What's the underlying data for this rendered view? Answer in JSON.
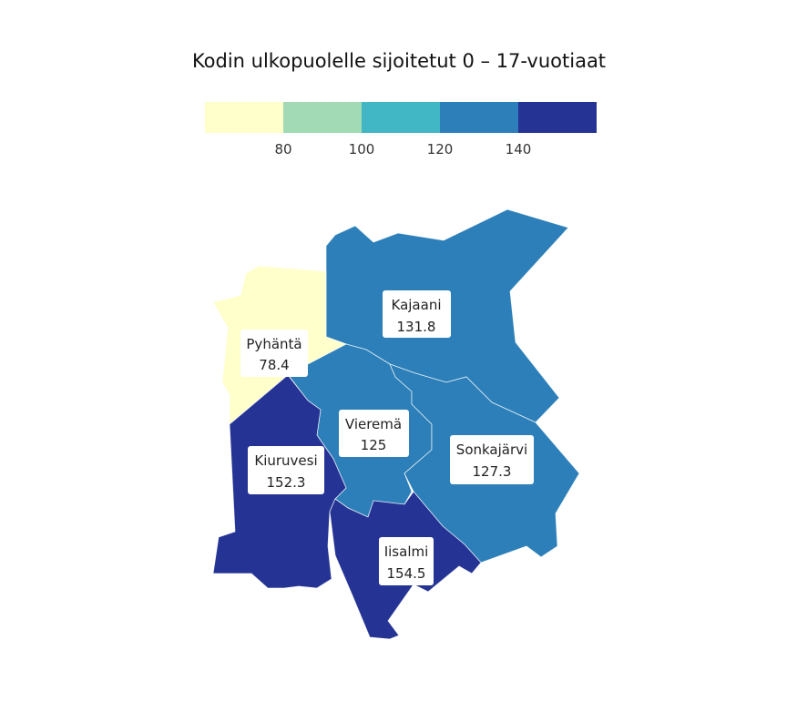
{
  "map": {
    "title": "Kodin ulkopuolelle sijoitetut 0 – 17-vuotiaat",
    "legend": {
      "colors": [
        "#ffffcc",
        "#a1dab4",
        "#41b6c4",
        "#2c7fb8",
        "#253494"
      ],
      "ticks": [
        "80",
        "100",
        "120",
        "140"
      ],
      "breaks": [
        80,
        100,
        120,
        140
      ]
    },
    "regions": [
      {
        "name": "Kajaani",
        "value": "131.8",
        "color": "#2c7fb8"
      },
      {
        "name": "Pyhäntä",
        "value": "78.4",
        "color": "#ffffcc"
      },
      {
        "name": "Vieremä",
        "value": "125",
        "color": "#2c7fb8"
      },
      {
        "name": "Sonkajärvi",
        "value": "127.3",
        "color": "#2c7fb8"
      },
      {
        "name": "Kiuruvesi",
        "value": "152.3",
        "color": "#253494"
      },
      {
        "name": "Iisalmi",
        "value": "154.5",
        "color": "#253494"
      }
    ]
  }
}
